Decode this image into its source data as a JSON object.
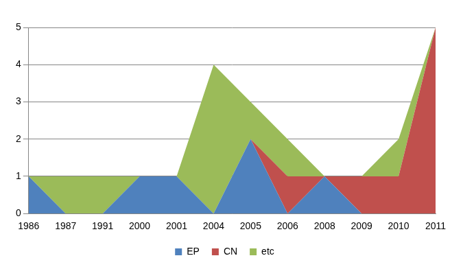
{
  "chart_data": {
    "type": "area",
    "stacked": true,
    "legend": "bottom",
    "grid": true,
    "categories": [
      "1986",
      "1987",
      "1991",
      "2000",
      "2001",
      "2004",
      "2005",
      "2006",
      "2008",
      "2009",
      "2010",
      "2011"
    ],
    "series": [
      {
        "name": "EP",
        "color": "#4f81bd",
        "values": [
          1,
          0,
          0,
          1,
          1,
          0,
          2,
          0,
          1,
          0,
          0,
          0
        ]
      },
      {
        "name": "CN",
        "color": "#c0504d",
        "values": [
          0,
          0,
          0,
          0,
          0,
          0,
          0,
          1,
          0,
          1,
          1,
          5
        ]
      },
      {
        "name": "etc",
        "color": "#9bbb59",
        "values": [
          0,
          1,
          1,
          0,
          0,
          4,
          1,
          1,
          0,
          0,
          1,
          0
        ]
      }
    ],
    "ylim": [
      0,
      5
    ],
    "yticks": [
      0,
      1,
      2,
      3,
      4,
      5
    ]
  }
}
